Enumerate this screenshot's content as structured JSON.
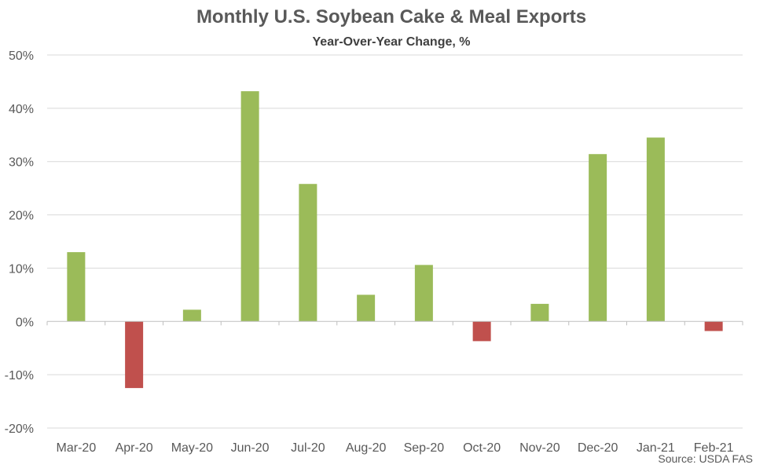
{
  "chart_data": {
    "type": "bar",
    "title": "Monthly U.S. Soybean Cake & Meal Exports",
    "subtitle": "Year-Over-Year Change, %",
    "categories": [
      "Mar-20",
      "Apr-20",
      "May-20",
      "Jun-20",
      "Jul-20",
      "Aug-20",
      "Sep-20",
      "Oct-20",
      "Nov-20",
      "Dec-20",
      "Jan-21",
      "Feb-21"
    ],
    "values": [
      13.0,
      -12.5,
      2.2,
      43.2,
      25.8,
      5.0,
      10.6,
      -3.7,
      3.3,
      31.4,
      34.5,
      -1.8
    ],
    "ylim": [
      -20,
      50
    ],
    "y_ticks": [
      50,
      40,
      30,
      20,
      10,
      0,
      -10,
      -20
    ],
    "y_tick_labels": [
      "50%",
      "40%",
      "30%",
      "20%",
      "10%",
      "0%",
      "-10%",
      "-20%"
    ],
    "grid": true,
    "colors": {
      "positive": "#9BBB59",
      "negative": "#C0504D",
      "grid": "#D9D9D9",
      "axis": "#BFBFBF"
    },
    "source": "Source: USDA FAS"
  }
}
